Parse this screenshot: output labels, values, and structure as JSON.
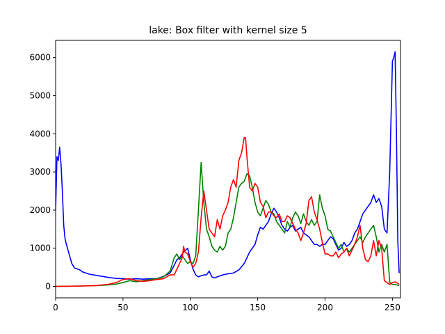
{
  "chart_data": {
    "type": "line",
    "title": "lake: Box filter with kernel size 5",
    "xlabel": "",
    "ylabel": "",
    "xlim": [
      0,
      256
    ],
    "ylim": [
      -300,
      6450
    ],
    "xticks": [
      0,
      50,
      100,
      150,
      200,
      250
    ],
    "yticks": [
      0,
      1000,
      2000,
      3000,
      4000,
      5000,
      6000
    ],
    "grid": false,
    "legend": "none",
    "series": [
      {
        "color": "#0000ff",
        "x": [
          0,
          1,
          2,
          3,
          4,
          5,
          6,
          7,
          8,
          10,
          12,
          14,
          16,
          18,
          20,
          25,
          30,
          35,
          40,
          45,
          50,
          55,
          60,
          65,
          70,
          75,
          80,
          85,
          88,
          90,
          92,
          95,
          98,
          100,
          102,
          104,
          106,
          108,
          110,
          112,
          114,
          116,
          118,
          120,
          124,
          128,
          132,
          136,
          140,
          144,
          148,
          150,
          152,
          154,
          156,
          158,
          160,
          162,
          164,
          166,
          168,
          170,
          172,
          174,
          176,
          178,
          180,
          182,
          184,
          186,
          188,
          190,
          192,
          194,
          196,
          198,
          200,
          202,
          204,
          206,
          208,
          210,
          212,
          214,
          216,
          218,
          220,
          222,
          224,
          226,
          228,
          230,
          232,
          234,
          236,
          238,
          240,
          242,
          244,
          246,
          248,
          250,
          251,
          252,
          253,
          254,
          255
        ],
        "y": [
          2000,
          3400,
          3300,
          3650,
          3200,
          2500,
          1600,
          1250,
          1100,
          850,
          600,
          480,
          460,
          430,
          380,
          320,
          290,
          260,
          230,
          210,
          200,
          190,
          200,
          190,
          200,
          200,
          260,
          350,
          550,
          700,
          750,
          900,
          1000,
          700,
          450,
          300,
          250,
          280,
          300,
          300,
          400,
          250,
          220,
          250,
          300,
          330,
          350,
          430,
          600,
          900,
          1100,
          1350,
          1550,
          1500,
          1600,
          1700,
          1900,
          2050,
          1950,
          1800,
          1600,
          1500,
          1450,
          1550,
          1600,
          1450,
          1500,
          1550,
          1400,
          1350,
          1300,
          1200,
          1100,
          1100,
          1050,
          1100,
          1100,
          1200,
          1300,
          1250,
          1100,
          950,
          1000,
          1150,
          1050,
          1100,
          1200,
          1400,
          1500,
          1700,
          1900,
          2000,
          2100,
          2200,
          2400,
          2200,
          2300,
          2100,
          1500,
          1400,
          3000,
          5900,
          6000,
          6150,
          4000,
          1200,
          350
        ]
      },
      {
        "color": "#008000",
        "x": [
          0,
          10,
          20,
          30,
          35,
          40,
          45,
          50,
          55,
          60,
          65,
          70,
          75,
          80,
          85,
          88,
          90,
          92,
          94,
          96,
          98,
          100,
          102,
          104,
          106,
          108,
          110,
          112,
          114,
          116,
          118,
          120,
          122,
          124,
          126,
          128,
          130,
          132,
          134,
          136,
          138,
          140,
          142,
          144,
          146,
          148,
          150,
          152,
          154,
          156,
          158,
          160,
          162,
          164,
          166,
          168,
          170,
          172,
          174,
          176,
          178,
          180,
          182,
          184,
          186,
          188,
          190,
          192,
          194,
          196,
          198,
          200,
          202,
          204,
          206,
          208,
          210,
          212,
          214,
          216,
          218,
          220,
          222,
          224,
          226,
          228,
          230,
          232,
          234,
          236,
          238,
          240,
          242,
          244,
          246,
          248,
          250,
          252,
          254,
          255
        ],
        "y": [
          0,
          5,
          10,
          20,
          30,
          40,
          60,
          100,
          150,
          120,
          150,
          180,
          200,
          250,
          400,
          750,
          850,
          700,
          800,
          700,
          600,
          650,
          600,
          800,
          2000,
          3250,
          2200,
          1500,
          1300,
          1050,
          950,
          900,
          1050,
          950,
          1050,
          1400,
          1500,
          1800,
          2200,
          2600,
          2700,
          2750,
          2950,
          2900,
          2600,
          2200,
          1950,
          1850,
          2050,
          2250,
          2150,
          1950,
          1900,
          1700,
          1600,
          1500,
          1400,
          1700,
          1550,
          1800,
          1950,
          1850,
          1650,
          1900,
          1700,
          1600,
          1750,
          1600,
          1700,
          2400,
          2050,
          1850,
          1500,
          1450,
          1300,
          1150,
          1000,
          1100,
          900,
          1000,
          900,
          1000,
          1100,
          1200,
          1300,
          1150,
          1300,
          1400,
          1500,
          1600,
          1300,
          900,
          1100,
          900,
          1100,
          100,
          50,
          50,
          30,
          20
        ]
      },
      {
        "color": "#ff0000",
        "x": [
          0,
          10,
          20,
          30,
          35,
          40,
          45,
          50,
          55,
          60,
          65,
          70,
          75,
          80,
          85,
          88,
          90,
          92,
          94,
          95,
          96,
          98,
          100,
          102,
          104,
          106,
          108,
          110,
          112,
          114,
          116,
          118,
          120,
          122,
          124,
          126,
          128,
          130,
          132,
          134,
          136,
          138,
          140,
          141,
          142,
          144,
          146,
          148,
          150,
          152,
          154,
          156,
          158,
          160,
          162,
          164,
          166,
          168,
          170,
          172,
          174,
          176,
          178,
          180,
          182,
          184,
          186,
          188,
          190,
          192,
          194,
          196,
          198,
          200,
          202,
          204,
          206,
          208,
          210,
          212,
          214,
          216,
          218,
          220,
          222,
          224,
          226,
          228,
          230,
          232,
          234,
          236,
          238,
          240,
          242,
          244,
          246,
          248,
          250,
          252,
          254,
          255
        ],
        "y": [
          0,
          5,
          10,
          20,
          40,
          60,
          100,
          180,
          200,
          150,
          130,
          150,
          180,
          200,
          300,
          300,
          450,
          600,
          750,
          1050,
          900,
          850,
          650,
          500,
          600,
          900,
          1800,
          2500,
          2000,
          1500,
          1400,
          1300,
          1750,
          1500,
          1850,
          2000,
          2200,
          2600,
          2800,
          2600,
          3300,
          3500,
          3900,
          3900,
          3400,
          2600,
          2500,
          2700,
          2600,
          2200,
          2100,
          1800,
          1950,
          1950,
          1850,
          1800,
          1900,
          1700,
          1700,
          1850,
          1800,
          1650,
          1500,
          1400,
          1200,
          1400,
          1650,
          2250,
          2350,
          1950,
          1750,
          1500,
          1150,
          850,
          850,
          800,
          800,
          900,
          750,
          850,
          900,
          1000,
          800,
          950,
          1100,
          1300,
          1600,
          1000,
          700,
          650,
          800,
          1200,
          800,
          1200,
          1000,
          150,
          100,
          50,
          100,
          120,
          80,
          50
        ]
      }
    ]
  }
}
